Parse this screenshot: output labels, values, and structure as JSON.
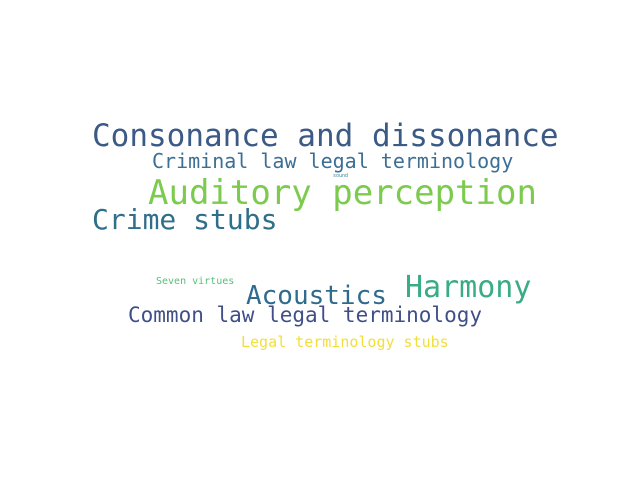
{
  "words": [
    {
      "text": "Consonance and dissonance",
      "color": "#3b5a86"
    },
    {
      "text": "Criminal law legal terminology",
      "color": "#3d6f94"
    },
    {
      "text": "sound",
      "color": "#3a7f99"
    },
    {
      "text": "Auditory perception",
      "color": "#7ccb4f"
    },
    {
      "text": "Crime stubs",
      "color": "#2f6f8a"
    },
    {
      "text": "Seven virtues",
      "color": "#55c07a"
    },
    {
      "text": "Harmony",
      "color": "#3aac85"
    },
    {
      "text": "Acoustics",
      "color": "#2f6b8c"
    },
    {
      "text": "Common law legal terminology",
      "color": "#404f88"
    },
    {
      "text": "Legal terminology stubs",
      "color": "#f2df3a"
    }
  ]
}
